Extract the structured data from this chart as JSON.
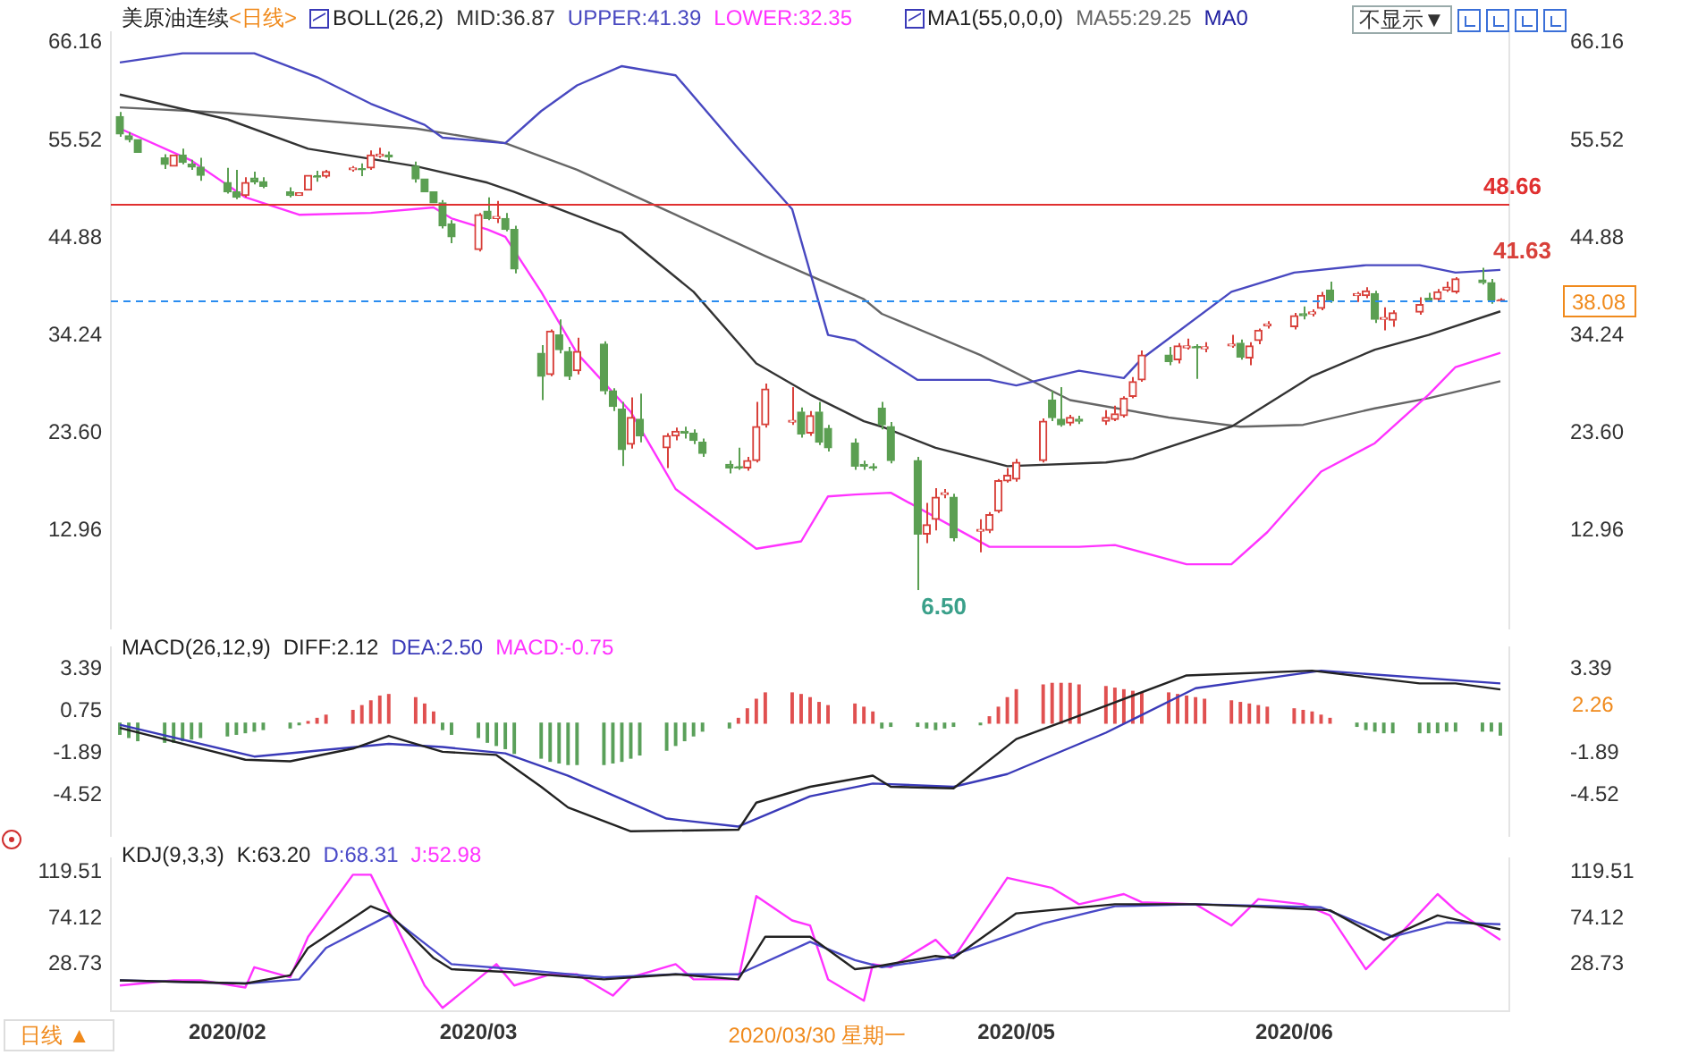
{
  "chart_data": [
    {
      "type": "candlestick",
      "title": "美原油连续",
      "subtitle": "<日线>",
      "legend_title": "BOLL(26,2)",
      "legend": "top",
      "tick_labels": "y",
      "marker": "none",
      "annotations": [
        "MA1(55,0,0,0)",
        "MA0",
        "不显示▼",
        {
          "text": "6.50",
          "x": "2020-04-20",
          "y": 6.5
        },
        {
          "text": "41.63",
          "x": "2020-06-22",
          "y": 41.63
        }
      ],
      "xlim": [
        "2020-01-21",
        "2020-06-25"
      ],
      "ylim": [
        2.2,
        67.3
      ],
      "yticks": [
        66.16,
        55.52,
        44.88,
        34.24,
        {
          "value": 23.6,
          "label": "23.60"
        },
        12.96
      ],
      "y2lim": [
        2.2,
        67.3
      ],
      "y2ticks": [
        66.16,
        55.52,
        44.88,
        34.24,
        {
          "value": 23.6,
          "label": "23.60"
        },
        12.96
      ],
      "ref_lines": [
        {
          "axis": "y",
          "value": 48.66,
          "label": "48.66",
          "color": "#e03030",
          "line_style": "solid"
        },
        {
          "axis": "y",
          "value": 38.08,
          "label": "38.08",
          "color": "#2a8cf0",
          "line_style": "dashed"
        }
      ],
      "x": [
        "2020-01-22",
        "2020-01-23",
        "2020-01-24",
        "2020-01-27",
        "2020-01-28",
        "2020-01-29",
        "2020-01-30",
        "2020-01-31",
        "2020-02-03",
        "2020-02-04",
        "2020-02-05",
        "2020-02-06",
        "2020-02-07",
        "2020-02-10",
        "2020-02-11",
        "2020-02-12",
        "2020-02-13",
        "2020-02-14",
        "2020-02-17",
        "2020-02-18",
        "2020-02-19",
        "2020-02-20",
        "2020-02-21",
        "2020-02-24",
        "2020-02-25",
        "2020-02-26",
        "2020-02-27",
        "2020-02-28",
        "2020-03-02",
        "2020-03-03",
        "2020-03-04",
        "2020-03-05",
        "2020-03-06",
        "2020-03-09",
        "2020-03-10",
        "2020-03-11",
        "2020-03-12",
        "2020-03-13",
        "2020-03-16",
        "2020-03-17",
        "2020-03-18",
        "2020-03-19",
        "2020-03-20",
        "2020-03-23",
        "2020-03-24",
        "2020-03-25",
        "2020-03-26",
        "2020-03-27",
        "2020-03-30",
        "2020-03-31",
        "2020-04-01",
        "2020-04-02",
        "2020-04-03",
        "2020-04-06",
        "2020-04-07",
        "2020-04-08",
        "2020-04-09",
        "2020-04-10",
        "2020-04-13",
        "2020-04-14",
        "2020-04-15",
        "2020-04-16",
        "2020-04-17",
        "2020-04-20",
        "2020-04-21",
        "2020-04-22",
        "2020-04-23",
        "2020-04-24",
        "2020-04-27",
        "2020-04-28",
        "2020-04-29",
        "2020-04-30",
        "2020-05-01",
        "2020-05-04",
        "2020-05-05",
        "2020-05-06",
        "2020-05-07",
        "2020-05-08",
        "2020-05-11",
        "2020-05-12",
        "2020-05-13",
        "2020-05-14",
        "2020-05-15",
        "2020-05-18",
        "2020-05-19",
        "2020-05-20",
        "2020-05-21",
        "2020-05-22",
        "2020-05-25",
        "2020-05-26",
        "2020-05-27",
        "2020-05-28",
        "2020-05-29",
        "2020-06-01",
        "2020-06-02",
        "2020-06-03",
        "2020-06-04",
        "2020-06-05",
        "2020-06-08",
        "2020-06-09",
        "2020-06-10",
        "2020-06-11",
        "2020-06-12",
        "2020-06-15",
        "2020-06-16",
        "2020-06-17",
        "2020-06-18",
        "2020-06-19",
        "2020-06-22",
        "2020-06-23",
        "2020-06-24"
      ],
      "ohlc": [
        [
          58.1,
          58.6,
          55.9,
          56.2
        ],
        [
          56.0,
          56.4,
          55.3,
          55.6
        ],
        [
          55.6,
          55.6,
          54.2,
          54.2
        ],
        [
          53.6,
          54.0,
          52.4,
          52.9
        ],
        [
          52.7,
          53.9,
          52.7,
          53.9
        ],
        [
          53.9,
          54.6,
          52.9,
          53.1
        ],
        [
          52.9,
          53.4,
          52.3,
          52.6
        ],
        [
          52.6,
          53.6,
          51.1,
          51.7
        ],
        [
          50.9,
          52.5,
          49.7,
          49.9
        ],
        [
          49.9,
          52.3,
          49.1,
          49.3
        ],
        [
          49.5,
          51.5,
          49.3,
          50.9
        ],
        [
          51.4,
          52.1,
          50.7,
          51.0
        ],
        [
          51.0,
          51.5,
          50.3,
          50.5
        ],
        [
          49.9,
          50.4,
          49.3,
          49.5
        ],
        [
          49.5,
          49.8,
          49.5,
          49.8
        ],
        [
          50.1,
          51.7,
          50.1,
          51.7
        ],
        [
          51.6,
          52.2,
          51.0,
          51.5
        ],
        [
          51.6,
          52.3,
          51.4,
          52.1
        ],
        [
          52.3,
          52.7,
          52.1,
          52.5
        ],
        [
          52.4,
          53.0,
          51.6,
          52.3
        ],
        [
          52.5,
          54.4,
          52.3,
          53.9
        ],
        [
          53.8,
          54.7,
          53.6,
          54.0
        ],
        [
          53.9,
          54.3,
          53.3,
          53.7
        ],
        [
          52.7,
          53.2,
          50.9,
          51.3
        ],
        [
          51.3,
          51.3,
          49.9,
          49.9
        ],
        [
          49.9,
          49.9,
          48.7,
          48.7
        ],
        [
          48.7,
          49.0,
          45.9,
          46.2
        ],
        [
          46.4,
          46.8,
          44.3,
          45.0
        ],
        [
          43.6,
          47.6,
          43.4,
          47.4
        ],
        [
          47.8,
          49.3,
          46.8,
          47.0
        ],
        [
          47.0,
          48.9,
          46.5,
          47.2
        ],
        [
          47.0,
          47.6,
          45.6,
          45.8
        ],
        [
          45.8,
          46.2,
          41.0,
          41.5
        ],
        [
          32.3,
          33.2,
          27.2,
          29.8
        ],
        [
          30.0,
          34.9,
          29.8,
          34.7
        ],
        [
          34.3,
          36.0,
          32.3,
          32.7
        ],
        [
          32.5,
          33.0,
          29.4,
          29.8
        ],
        [
          30.4,
          34.0,
          30.0,
          32.5
        ],
        [
          33.3,
          33.6,
          27.8,
          28.2
        ],
        [
          28.2,
          28.5,
          26.0,
          26.5
        ],
        [
          26.2,
          27.0,
          20.0,
          21.8
        ],
        [
          22.4,
          27.5,
          21.9,
          25.3
        ],
        [
          25.1,
          27.9,
          22.6,
          23.3
        ],
        [
          22.0,
          23.6,
          19.8,
          23.3
        ],
        [
          23.3,
          24.2,
          22.8,
          23.8
        ],
        [
          23.8,
          24.3,
          23.0,
          23.6
        ],
        [
          23.6,
          24.0,
          22.4,
          22.8
        ],
        [
          22.6,
          23.0,
          21.0,
          21.4
        ],
        [
          20.2,
          20.6,
          19.2,
          19.8
        ],
        [
          19.9,
          22.0,
          19.6,
          19.8
        ],
        [
          19.8,
          21.0,
          19.5,
          20.6
        ],
        [
          20.6,
          27.0,
          20.4,
          24.3
        ],
        [
          24.5,
          29.0,
          24.2,
          28.4
        ],
        [
          24.8,
          28.6,
          24.5,
          25.0
        ],
        [
          25.9,
          26.4,
          23.1,
          23.5
        ],
        [
          23.6,
          26.0,
          23.3,
          25.5
        ],
        [
          25.9,
          27.0,
          22.3,
          22.6
        ],
        [
          24.1,
          24.5,
          21.6,
          22.0
        ],
        [
          22.5,
          23.0,
          19.6,
          20.0
        ],
        [
          20.2,
          20.6,
          19.6,
          20.0
        ],
        [
          19.9,
          20.3,
          19.5,
          19.8
        ],
        [
          26.3,
          27.0,
          24.0,
          24.5
        ],
        [
          24.3,
          24.8,
          20.3,
          20.6
        ],
        [
          20.6,
          21.0,
          6.5,
          12.6
        ],
        [
          12.6,
          16.0,
          11.6,
          13.6
        ],
        [
          14.2,
          17.6,
          13.0,
          16.6
        ],
        [
          16.9,
          17.5,
          16.5,
          17.1
        ],
        [
          16.6,
          17.0,
          11.8,
          12.2
        ],
        [
          12.9,
          14.2,
          10.6,
          13.1
        ],
        [
          13.0,
          15.0,
          12.7,
          14.7
        ],
        [
          15.1,
          18.6,
          14.9,
          18.4
        ],
        [
          18.4,
          19.8,
          18.2,
          19.0
        ],
        [
          18.6,
          20.8,
          18.3,
          20.4
        ],
        [
          20.6,
          25.2,
          20.4,
          24.9
        ],
        [
          27.2,
          28.2,
          24.9,
          25.3
        ],
        [
          25.1,
          28.6,
          24.3,
          24.5
        ],
        [
          24.7,
          25.6,
          24.4,
          25.3
        ],
        [
          25.1,
          25.5,
          24.6,
          24.9
        ],
        [
          24.9,
          26.1,
          24.5,
          25.3
        ],
        [
          25.1,
          26.6,
          24.9,
          25.7
        ],
        [
          25.5,
          27.6,
          25.3,
          27.4
        ],
        [
          27.6,
          29.7,
          27.4,
          29.2
        ],
        [
          29.4,
          32.6,
          29.2,
          32.1
        ],
        [
          32.1,
          33.0,
          31.0,
          31.4
        ],
        [
          31.6,
          33.4,
          31.2,
          33.1
        ],
        [
          32.9,
          33.9,
          32.7,
          33.1
        ],
        [
          33.0,
          33.3,
          29.5,
          32.9
        ],
        [
          32.8,
          33.5,
          32.4,
          33.0
        ],
        [
          33.1,
          34.3,
          32.9,
          33.3
        ],
        [
          33.4,
          33.8,
          31.6,
          31.9
        ],
        [
          31.8,
          33.5,
          31.0,
          33.1
        ],
        [
          33.7,
          35.0,
          33.3,
          34.8
        ],
        [
          35.3,
          35.8,
          35.0,
          35.5
        ],
        [
          35.2,
          36.7,
          34.9,
          36.4
        ],
        [
          36.6,
          37.4,
          36.0,
          36.4
        ],
        [
          36.6,
          37.1,
          36.3,
          36.8
        ],
        [
          37.2,
          39.0,
          37.0,
          38.6
        ],
        [
          39.2,
          40.1,
          37.8,
          38.0
        ],
        [
          38.6,
          39.0,
          37.9,
          38.8
        ],
        [
          38.6,
          39.5,
          38.3,
          39.1
        ],
        [
          38.8,
          39.1,
          35.6,
          36.0
        ],
        [
          36.0,
          37.3,
          34.8,
          36.2
        ],
        [
          35.9,
          37.0,
          35.2,
          36.7
        ],
        [
          36.8,
          38.4,
          36.5,
          37.6
        ],
        [
          38.3,
          38.9,
          37.9,
          38.1
        ],
        [
          38.2,
          39.3,
          38.0,
          39.0
        ],
        [
          39.2,
          40.1,
          39.0,
          39.5
        ],
        [
          39.0,
          40.6,
          38.8,
          40.4
        ],
        [
          40.3,
          41.63,
          39.8,
          40.0
        ],
        [
          40.0,
          40.4,
          37.7,
          38.1
        ],
        [
          38.0,
          38.3,
          37.9,
          38.08
        ]
      ],
      "series": [
        {
          "name": "MID:36.87",
          "type": "line",
          "color": "#333333",
          "x": [
            "2020-01-22",
            "2020-02-03",
            "2020-02-12",
            "2020-02-24",
            "2020-03-03",
            "2020-03-06",
            "2020-03-18",
            "2020-03-26",
            "2020-04-02",
            "2020-04-08",
            "2020-04-14",
            "2020-04-16",
            "2020-04-22",
            "2020-04-30",
            "2020-05-11",
            "2020-05-14",
            "2020-05-25",
            "2020-06-03",
            "2020-06-10",
            "2020-06-16",
            "2020-06-24"
          ],
          "values": [
            60.5,
            57.8,
            54.6,
            52.7,
            50.9,
            49.9,
            45.4,
            39.0,
            31.2,
            27.8,
            24.9,
            24.3,
            22.0,
            20.0,
            20.4,
            20.8,
            24.3,
            29.8,
            32.7,
            34.3,
            36.87
          ]
        },
        {
          "name": "UPPER:41.39",
          "type": "line",
          "color": "#4848c0",
          "x": [
            "2020-01-22",
            "2020-01-29",
            "2020-02-06",
            "2020-02-13",
            "2020-02-19",
            "2020-02-25",
            "2020-02-27",
            "2020-03-05",
            "2020-03-09",
            "2020-03-13",
            "2020-03-18",
            "2020-03-24",
            "2020-03-31",
            "2020-04-06",
            "2020-04-10",
            "2020-04-13",
            "2020-04-20",
            "2020-04-28",
            "2020-05-01",
            "2020-05-08",
            "2020-05-13",
            "2020-05-15",
            "2020-05-25",
            "2020-06-01",
            "2020-06-09",
            "2020-06-15",
            "2020-06-19",
            "2020-06-24"
          ],
          "values": [
            64.0,
            65.0,
            65.0,
            62.4,
            59.5,
            57.2,
            55.8,
            55.2,
            58.7,
            61.5,
            63.6,
            62.6,
            54.6,
            48.0,
            34.3,
            33.7,
            29.4,
            29.4,
            28.8,
            30.4,
            29.6,
            31.7,
            39.0,
            41.1,
            41.9,
            41.9,
            41.1,
            41.39
          ]
        },
        {
          "name": "LOWER:32.35",
          "type": "line",
          "color": "#ff33ff",
          "x": [
            "2020-01-22",
            "2020-01-30",
            "2020-02-05",
            "2020-02-11",
            "2020-02-19",
            "2020-02-26",
            "2020-02-28",
            "2020-03-03",
            "2020-03-05",
            "2020-03-09",
            "2020-03-13",
            "2020-03-19",
            "2020-03-24",
            "2020-04-02",
            "2020-04-07",
            "2020-04-10",
            "2020-04-13",
            "2020-04-17",
            "2020-04-28",
            "2020-05-08",
            "2020-05-12",
            "2020-05-20",
            "2020-05-25",
            "2020-05-29",
            "2020-06-04",
            "2020-06-10",
            "2020-06-16",
            "2020-06-19",
            "2020-06-24"
          ],
          "values": [
            56.8,
            53.3,
            49.3,
            47.4,
            47.6,
            48.2,
            47.0,
            45.8,
            45.0,
            39.0,
            32.3,
            25.9,
            17.5,
            11.0,
            11.8,
            16.7,
            16.9,
            17.1,
            11.2,
            11.2,
            11.4,
            9.3,
            9.3,
            12.8,
            19.4,
            22.5,
            27.8,
            30.8,
            32.35
          ]
        },
        {
          "name": "MA55:29.25",
          "type": "line",
          "color": "#666666",
          "x": [
            "2020-01-22",
            "2020-02-03",
            "2020-02-24",
            "2020-03-05",
            "2020-03-13",
            "2020-03-24",
            "2020-04-03",
            "2020-04-14",
            "2020-04-16",
            "2020-04-27",
            "2020-05-07",
            "2020-05-18",
            "2020-05-26",
            "2020-06-02",
            "2020-06-10",
            "2020-06-16",
            "2020-06-24"
          ],
          "values": [
            59.1,
            58.5,
            56.8,
            55.2,
            52.3,
            47.4,
            42.9,
            38.2,
            36.6,
            32.1,
            27.2,
            25.3,
            24.3,
            24.5,
            26.3,
            27.4,
            29.25
          ]
        }
      ]
    },
    {
      "type": "line",
      "title": "MACD(26,12,9)",
      "legend": "top left",
      "tick_labels": "y",
      "marker": "none",
      "annotations": [
        "2.26"
      ],
      "xlim": [
        "2020-01-21",
        "2020-06-25"
      ],
      "ylim": [
        -7.15,
        4.77
      ],
      "yticks": [
        3.39,
        0.75,
        -1.89,
        -4.52
      ],
      "y2lim": [
        -7.15,
        4.77
      ],
      "y2ticks": [
        3.39,
        -1.89,
        -4.52
      ],
      "x": [
        "2020-01-22",
        "2020-01-23",
        "2020-01-24",
        "2020-01-27",
        "2020-01-28",
        "2020-01-29",
        "2020-01-30",
        "2020-01-31",
        "2020-02-03",
        "2020-02-04",
        "2020-02-05",
        "2020-02-06",
        "2020-02-07",
        "2020-02-10",
        "2020-02-11",
        "2020-02-12",
        "2020-02-13",
        "2020-02-14",
        "2020-02-17",
        "2020-02-18",
        "2020-02-19",
        "2020-02-20",
        "2020-02-21",
        "2020-02-24",
        "2020-02-25",
        "2020-02-26",
        "2020-02-27",
        "2020-02-28",
        "2020-03-02",
        "2020-03-03",
        "2020-03-04",
        "2020-03-05",
        "2020-03-06",
        "2020-03-09",
        "2020-03-10",
        "2020-03-11",
        "2020-03-12",
        "2020-03-13",
        "2020-03-16",
        "2020-03-17",
        "2020-03-18",
        "2020-03-19",
        "2020-03-20",
        "2020-03-23",
        "2020-03-24",
        "2020-03-25",
        "2020-03-26",
        "2020-03-27",
        "2020-03-30",
        "2020-03-31",
        "2020-04-01",
        "2020-04-02",
        "2020-04-03",
        "2020-04-06",
        "2020-04-07",
        "2020-04-08",
        "2020-04-09",
        "2020-04-10",
        "2020-04-13",
        "2020-04-14",
        "2020-04-15",
        "2020-04-16",
        "2020-04-17",
        "2020-04-20",
        "2020-04-21",
        "2020-04-22",
        "2020-04-23",
        "2020-04-24",
        "2020-04-27",
        "2020-04-28",
        "2020-04-29",
        "2020-04-30",
        "2020-05-01",
        "2020-05-04",
        "2020-05-05",
        "2020-05-06",
        "2020-05-07",
        "2020-05-08",
        "2020-05-11",
        "2020-05-12",
        "2020-05-13",
        "2020-05-14",
        "2020-05-15",
        "2020-05-18",
        "2020-05-19",
        "2020-05-20",
        "2020-05-21",
        "2020-05-22",
        "2020-05-25",
        "2020-05-26",
        "2020-05-27",
        "2020-05-28",
        "2020-05-29",
        "2020-06-01",
        "2020-06-02",
        "2020-06-03",
        "2020-06-04",
        "2020-06-05",
        "2020-06-08",
        "2020-06-09",
        "2020-06-10",
        "2020-06-11",
        "2020-06-12",
        "2020-06-15",
        "2020-06-16",
        "2020-06-17",
        "2020-06-18",
        "2020-06-19",
        "2020-06-22",
        "2020-06-23",
        "2020-06-24"
      ],
      "series": [
        {
          "name": "DIFF:2.12",
          "type": "line",
          "color": "#222222",
          "x": [
            "2020-01-22",
            "2020-02-05",
            "2020-02-10",
            "2020-02-17",
            "2020-02-21",
            "2020-02-27",
            "2020-03-04",
            "2020-03-09",
            "2020-03-12",
            "2020-03-19",
            "2020-03-31",
            "2020-04-02",
            "2020-04-08",
            "2020-04-15",
            "2020-04-17",
            "2020-04-24",
            "2020-05-01",
            "2020-05-11",
            "2020-05-20",
            "2020-06-03",
            "2020-06-15",
            "2020-06-19",
            "2020-06-24"
          ],
          "values": [
            -0.3,
            -2.3,
            -2.4,
            -1.6,
            -0.8,
            -1.8,
            -2.0,
            -4.0,
            -5.3,
            -6.8,
            -6.7,
            -5.0,
            -4.0,
            -3.3,
            -4.0,
            -4.1,
            -1.0,
            1.1,
            3.0,
            3.3,
            2.5,
            2.5,
            2.12
          ]
        },
        {
          "name": "DEA:2.50",
          "type": "line",
          "color": "#3a3ab8",
          "x": [
            "2020-01-22",
            "2020-02-06",
            "2020-02-21",
            "2020-02-27",
            "2020-03-05",
            "2020-03-12",
            "2020-03-23",
            "2020-03-31",
            "2020-04-08",
            "2020-04-15",
            "2020-04-24",
            "2020-04-30",
            "2020-05-11",
            "2020-05-21",
            "2020-06-04",
            "2020-06-24"
          ],
          "values": [
            -0.1,
            -2.1,
            -1.3,
            -1.5,
            -1.9,
            -3.3,
            -6.0,
            -6.5,
            -4.6,
            -3.8,
            -4.0,
            -3.2,
            -0.6,
            2.2,
            3.3,
            2.5
          ]
        },
        {
          "name": "MACD:-0.75",
          "type": "bar",
          "color": "#ff33ff",
          "values": [
            -0.7,
            -0.9,
            -1.1,
            -1.2,
            -1.2,
            -1.1,
            -1.0,
            -0.9,
            -0.8,
            -0.7,
            -0.6,
            -0.5,
            -0.4,
            -0.3,
            -0.1,
            0.1,
            0.3,
            0.5,
            0.8,
            1.1,
            1.4,
            1.7,
            1.8,
            1.6,
            1.2,
            0.7,
            -0.4,
            -0.7,
            -0.9,
            -1.2,
            -1.4,
            -1.6,
            -1.9,
            -2.2,
            -2.4,
            -2.5,
            -2.6,
            -2.6,
            -2.6,
            -2.5,
            -2.4,
            -2.2,
            -2.0,
            -1.7,
            -1.4,
            -1.1,
            -0.8,
            -0.5,
            -0.3,
            0.3,
            0.9,
            1.5,
            1.9,
            1.9,
            1.8,
            1.6,
            1.3,
            1.1,
            1.2,
            1.0,
            0.7,
            -0.3,
            -0.2,
            -0.2,
            -0.3,
            -0.4,
            -0.3,
            -0.2,
            -0.1,
            0.4,
            1.0,
            1.6,
            2.1,
            2.4,
            2.5,
            2.5,
            2.5,
            2.4,
            2.3,
            2.2,
            2.1,
            2.0,
            1.9,
            1.9,
            1.8,
            1.7,
            1.6,
            1.5,
            1.4,
            1.3,
            1.2,
            1.1,
            1.0,
            0.9,
            0.8,
            0.7,
            0.5,
            0.3,
            -0.2,
            -0.4,
            -0.5,
            -0.6,
            -0.6,
            -0.6,
            -0.6,
            -0.6,
            -0.5,
            -0.5,
            -0.5,
            -0.5,
            -0.75
          ],
          "colors": [
            "#5aa05a",
            "#5aa05a",
            "#5aa05a",
            "#5aa05a",
            "#5aa05a",
            "#5aa05a",
            "#5aa05a",
            "#5aa05a",
            "#5aa05a",
            "#5aa05a",
            "#5aa05a",
            "#5aa05a",
            "#5aa05a",
            "#5aa05a",
            "#5aa05a",
            "#e05050",
            "#e05050",
            "#e05050",
            "#e05050",
            "#e05050",
            "#e05050",
            "#e05050",
            "#e05050",
            "#e05050",
            "#e05050",
            "#e05050",
            "#5aa05a",
            "#5aa05a",
            "#5aa05a",
            "#5aa05a",
            "#5aa05a",
            "#5aa05a",
            "#5aa05a",
            "#5aa05a",
            "#5aa05a",
            "#5aa05a",
            "#5aa05a",
            "#5aa05a",
            "#5aa05a",
            "#5aa05a",
            "#5aa05a",
            "#5aa05a",
            "#5aa05a",
            "#5aa05a",
            "#5aa05a",
            "#5aa05a",
            "#5aa05a",
            "#5aa05a",
            "#5aa05a",
            "#e05050",
            "#e05050",
            "#e05050",
            "#e05050",
            "#e05050",
            "#e05050",
            "#e05050",
            "#e05050",
            "#e05050",
            "#e05050",
            "#e05050",
            "#e05050",
            "#5aa05a",
            "#5aa05a",
            "#5aa05a",
            "#5aa05a",
            "#5aa05a",
            "#5aa05a",
            "#5aa05a",
            "#5aa05a",
            "#e05050",
            "#e05050",
            "#e05050",
            "#e05050",
            "#e05050",
            "#e05050",
            "#e05050",
            "#e05050",
            "#e05050",
            "#e05050",
            "#e05050",
            "#e05050",
            "#e05050",
            "#e05050",
            "#e05050",
            "#e05050",
            "#e05050",
            "#e05050",
            "#e05050",
            "#e05050",
            "#e05050",
            "#e05050",
            "#e05050",
            "#e05050",
            "#e05050",
            "#e05050",
            "#e05050",
            "#e05050",
            "#e05050",
            "#5aa05a",
            "#5aa05a",
            "#5aa05a",
            "#5aa05a",
            "#5aa05a",
            "#5aa05a",
            "#5aa05a",
            "#5aa05a",
            "#5aa05a",
            "#5aa05a",
            "#5aa05a",
            "#5aa05a",
            "#5aa05a"
          ]
        }
      ]
    },
    {
      "type": "line",
      "title": "KDJ(9,3,3)",
      "legend": "top left",
      "marker": "none",
      "annotations": [
        "2020/03/30 星期一",
        "日线 ▲"
      ],
      "xlim": [
        "2020-01-21",
        "2020-06-25"
      ],
      "xticks": [
        {
          "value": "2020-02-03",
          "label": "2020/02"
        },
        {
          "value": "2020-03-02",
          "label": "2020/03"
        },
        {
          "value": "2020-05-01",
          "label": "2020/05"
        },
        {
          "value": "2020-06-01",
          "label": "2020/06"
        }
      ],
      "ylim": [
        -17.5,
        133.2
      ],
      "yticks": [
        119.51,
        74.12,
        28.73
      ],
      "y2lim": [
        -17.5,
        133.2
      ],
      "y2ticks": [
        119.51,
        74.12,
        28.73
      ],
      "series": [
        {
          "name": "K:63.20",
          "type": "line",
          "color": "#222222",
          "x": [
            "2020-01-22",
            "2020-01-31",
            "2020-02-05",
            "2020-02-10",
            "2020-02-12",
            "2020-02-19",
            "2020-02-21",
            "2020-02-26",
            "2020-02-28",
            "2020-03-06",
            "2020-03-16",
            "2020-03-24",
            "2020-03-31",
            "2020-04-03",
            "2020-04-08",
            "2020-04-13",
            "2020-04-15",
            "2020-04-22",
            "2020-04-24",
            "2020-05-01",
            "2020-05-12",
            "2020-05-21",
            "2020-05-27",
            "2020-06-05",
            "2020-06-11",
            "2020-06-17",
            "2020-06-24"
          ],
          "values": [
            13,
            11,
            10,
            18,
            45,
            86,
            79,
            35,
            24,
            21,
            14,
            19,
            14,
            56,
            56,
            24,
            26,
            37,
            35,
            79,
            88,
            88,
            86,
            82,
            53,
            77,
            63.2
          ]
        },
        {
          "name": "D:68.31",
          "type": "line",
          "color": "#4a4ac8",
          "x": [
            "2020-01-22",
            "2020-02-05",
            "2020-02-11",
            "2020-02-14",
            "2020-02-21",
            "2020-02-28",
            "2020-03-06",
            "2020-03-16",
            "2020-03-24",
            "2020-03-31",
            "2020-04-08",
            "2020-04-13",
            "2020-04-16",
            "2020-04-23",
            "2020-05-04",
            "2020-05-12",
            "2020-05-21",
            "2020-06-04",
            "2020-06-12",
            "2020-06-18",
            "2020-06-24"
          ],
          "values": [
            13,
            10,
            14,
            45,
            77,
            29,
            24,
            16,
            19,
            19,
            51,
            33,
            26,
            35,
            69,
            86,
            88,
            85,
            56,
            70,
            68.31
          ]
        },
        {
          "name": "J:52.98",
          "type": "line",
          "color": "#ff33ff",
          "x": [
            "2020-01-22",
            "2020-01-28",
            "2020-01-31",
            "2020-02-05",
            "2020-02-06",
            "2020-02-10",
            "2020-02-12",
            "2020-02-17",
            "2020-02-19",
            "2020-02-21",
            "2020-02-25",
            "2020-02-27",
            "2020-02-28",
            "2020-03-04",
            "2020-03-06",
            "2020-03-10",
            "2020-03-13",
            "2020-03-17",
            "2020-03-19",
            "2020-03-24",
            "2020-03-26",
            "2020-03-31",
            "2020-04-02",
            "2020-04-06",
            "2020-04-08",
            "2020-04-10",
            "2020-04-14",
            "2020-04-15",
            "2020-04-17",
            "2020-04-22",
            "2020-04-24",
            "2020-04-30",
            "2020-05-05",
            "2020-05-08",
            "2020-05-13",
            "2020-05-15",
            "2020-05-21",
            "2020-05-25",
            "2020-05-28",
            "2020-06-02",
            "2020-06-05",
            "2020-06-09",
            "2020-06-12",
            "2020-06-17",
            "2020-06-19",
            "2020-06-24"
          ],
          "values": [
            8,
            13,
            13,
            6,
            26,
            16,
            56,
            117,
            117,
            82,
            8,
            -14,
            -7,
            29,
            8,
            19,
            19,
            -2,
            16,
            29,
            14,
            14,
            96,
            72,
            67,
            14,
            -7,
            29,
            26,
            53,
            35,
            114,
            104,
            88,
            98,
            90,
            88,
            67,
            93,
            88,
            77,
            24,
            51,
            98,
            82,
            52.98
          ]
        }
      ]
    }
  ]
}
